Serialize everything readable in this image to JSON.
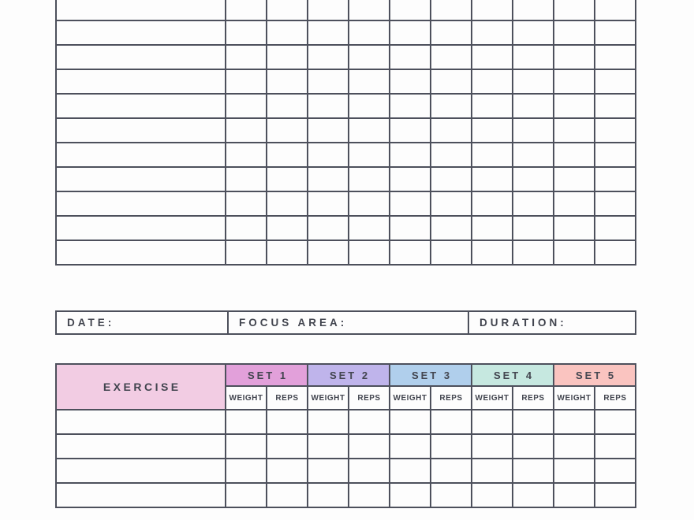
{
  "page": {
    "background": "#fdfdfd",
    "border_color": "#4d505c",
    "text_color": "#42454f"
  },
  "previous_log_grid": {
    "visible_rows": 11,
    "narrow_columns": 10
  },
  "session_info": {
    "date_label": "DATE:",
    "focus_area_label": "FOCUS AREA:",
    "duration_label": "DURATION:"
  },
  "exercise_table": {
    "exercise_label": "EXERCISE",
    "exercise_header_color": "#f2cce3",
    "sets": [
      {
        "label": "SET 1",
        "color": "#e2a0da"
      },
      {
        "label": "SET 2",
        "color": "#bfb4eb"
      },
      {
        "label": "SET 3",
        "color": "#b0cfec"
      },
      {
        "label": "SET 4",
        "color": "#c6e8e0"
      },
      {
        "label": "SET 5",
        "color": "#fac4c0"
      }
    ],
    "weight_label": "WEIGHT",
    "reps_label": "REPS",
    "body_rows": 4
  }
}
